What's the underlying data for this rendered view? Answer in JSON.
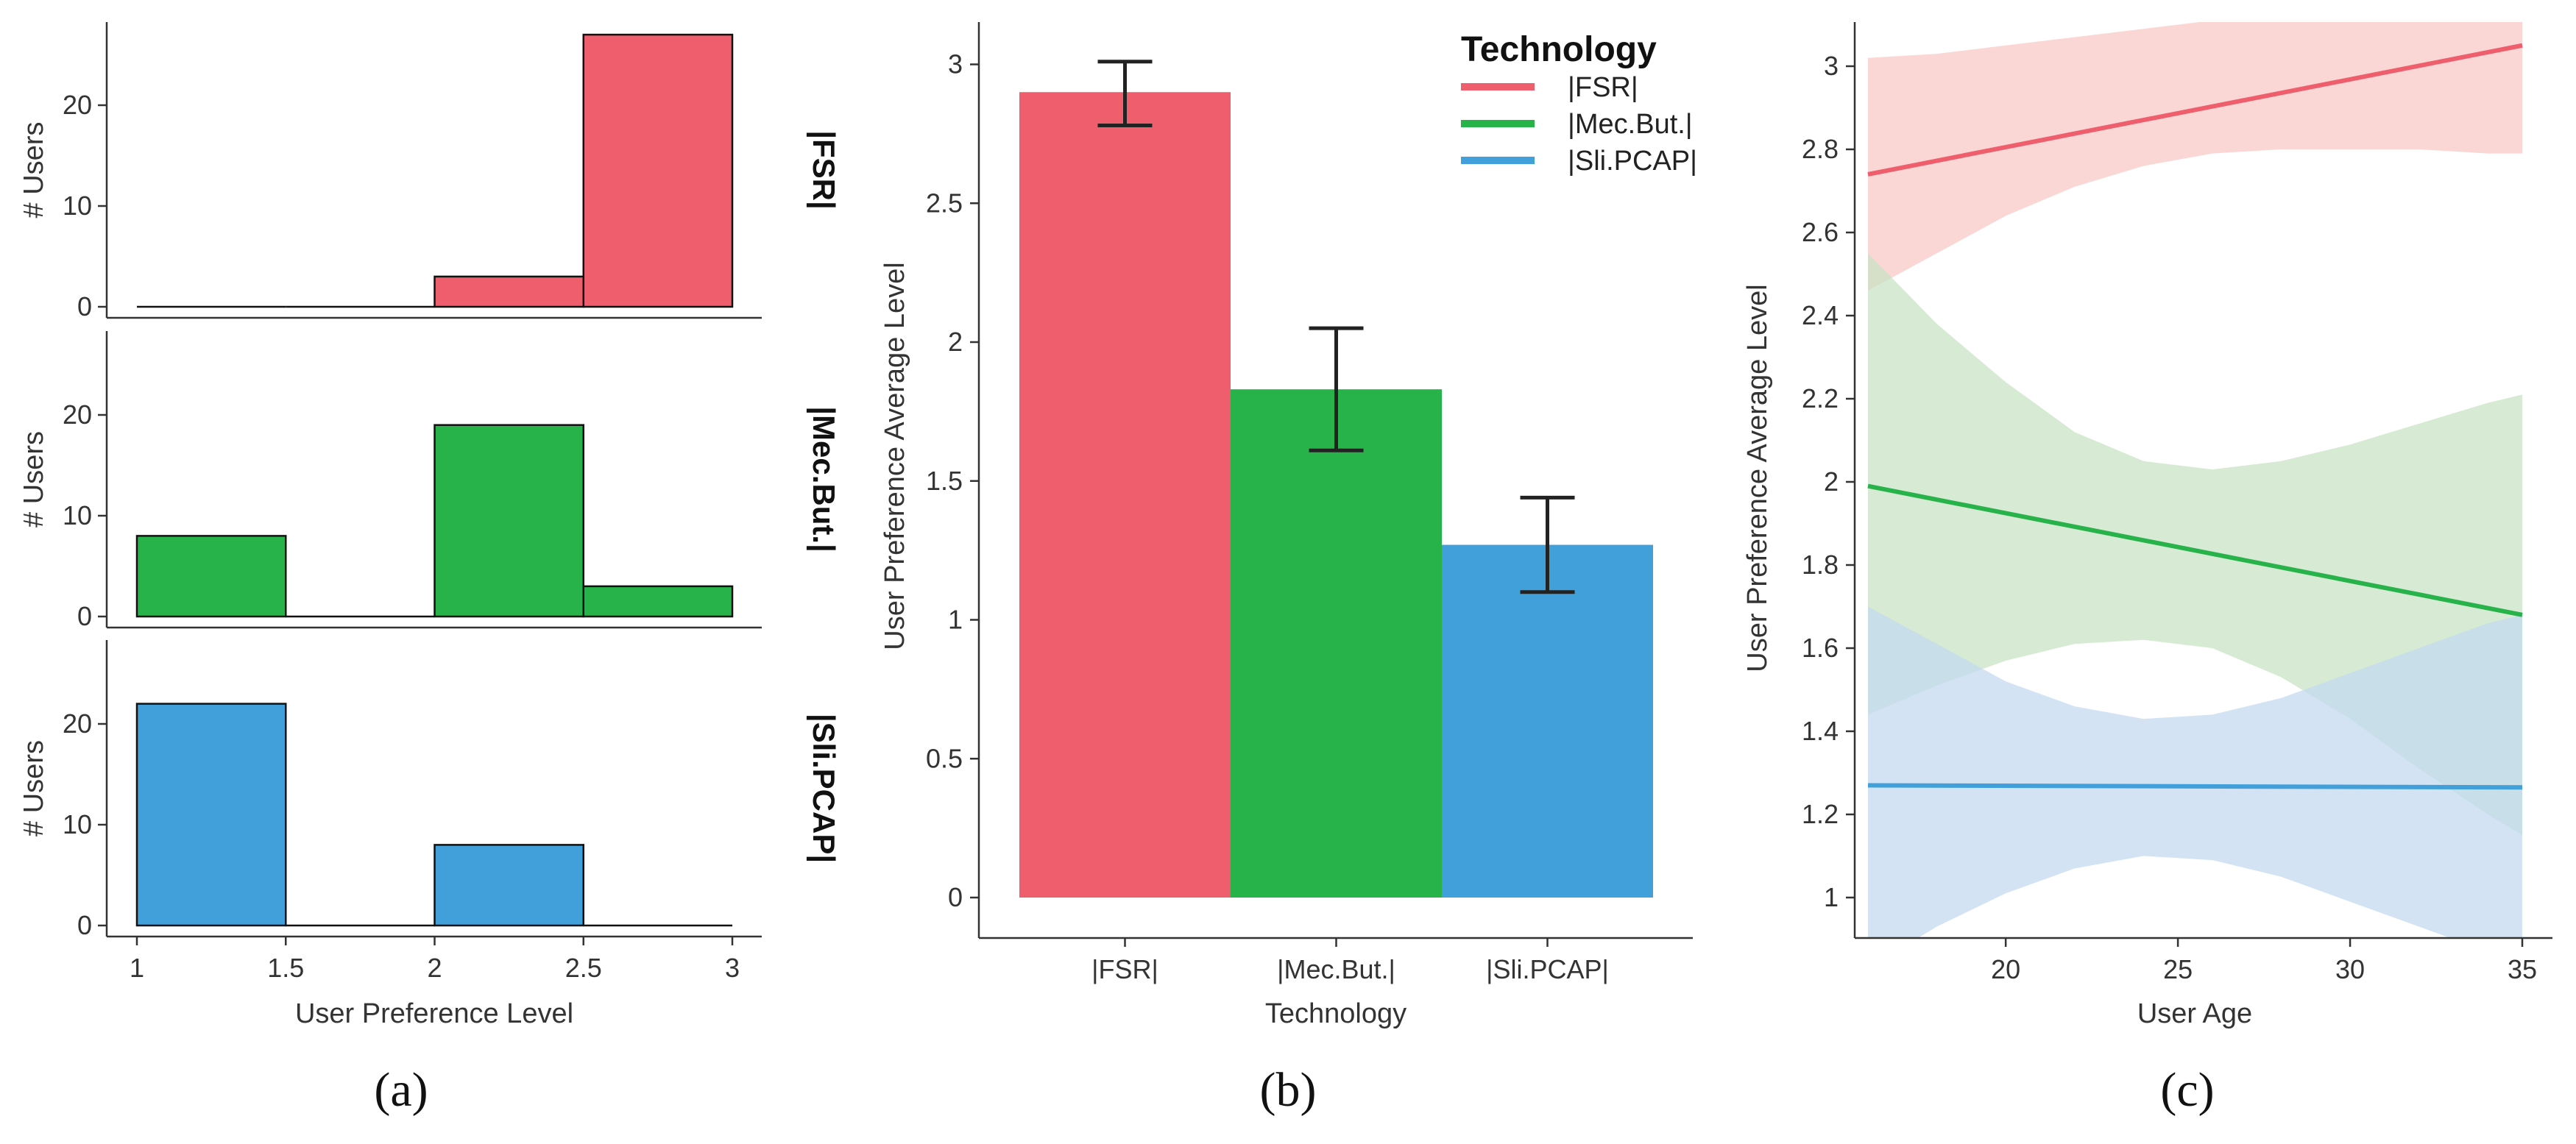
{
  "colors": {
    "FSR": "#EE5E6C",
    "MecBut": "#27B24A",
    "SliPCAP": "#419FDA",
    "FSR_band": "#F8C8C4",
    "MecBut_band": "#C7E3C3",
    "SliPCAP_band": "#C2D8F0",
    "axis": "#333333",
    "errorbar": "#222222"
  },
  "panel_labels": [
    "(a)",
    "(b)",
    "(c)"
  ],
  "chart_data": [
    {
      "type": "bar",
      "subtype": "faceted-histogram",
      "xlabel": "User Preference Level",
      "ylabel": "# Users",
      "xlim": [
        1,
        3
      ],
      "ylim": [
        0,
        28
      ],
      "xticks": [
        "1",
        "1.5",
        "2",
        "2.5",
        "3"
      ],
      "yticks": [
        "0",
        "10",
        "20"
      ],
      "bin_edges": [
        1,
        1.5,
        2,
        2.5,
        3
      ],
      "facets": [
        {
          "name": "|FSR|",
          "color_key": "FSR",
          "counts": [
            0,
            0,
            3,
            27
          ]
        },
        {
          "name": "|Mec.But.|",
          "color_key": "MecBut",
          "counts": [
            8,
            0,
            19,
            3
          ]
        },
        {
          "name": "|Sli.PCAP|",
          "color_key": "SliPCAP",
          "counts": [
            22,
            0,
            8,
            0
          ]
        }
      ]
    },
    {
      "type": "bar",
      "categories": [
        "|FSR|",
        "|Mec.But.|",
        "|Sli.PCAP|"
      ],
      "values": [
        2.9,
        1.83,
        1.27
      ],
      "error_low": [
        2.78,
        1.61,
        1.1
      ],
      "error_high": [
        3.01,
        2.05,
        1.44
      ],
      "color_keys": [
        "FSR",
        "MecBut",
        "SliPCAP"
      ],
      "xlabel": "Technology",
      "ylabel": "User Preference Average Level",
      "ylim": [
        -0.15,
        3.15
      ],
      "yticks": [
        "0",
        "0.5",
        "1",
        "1.5",
        "2",
        "2.5",
        "3"
      ],
      "legend": {
        "title": "Technology",
        "placement": "top-right",
        "entries": [
          "|FSR|",
          "|Mec.But.|",
          "|Sli.PCAP|"
        ]
      }
    },
    {
      "type": "line",
      "subtype": "regression-with-confidence-band",
      "xlabel": "User Age",
      "ylabel": "User Preference Average Level",
      "xlim": [
        15.2,
        35.8
      ],
      "ylim": [
        0.85,
        3.1
      ],
      "xticks": [
        "20",
        "25",
        "30",
        "35"
      ],
      "yticks": [
        "1",
        "1.2",
        "1.4",
        "1.6",
        "1.8",
        "2",
        "2.2",
        "2.4",
        "2.6",
        "2.8",
        "3"
      ],
      "band_x": [
        16,
        18,
        20,
        22,
        24,
        26,
        28,
        30,
        32,
        34,
        35
      ],
      "series": [
        {
          "name": "|FSR|",
          "color_key": "FSR",
          "band_key": "FSR_band",
          "line_x": [
            16,
            35
          ],
          "line_y": [
            2.74,
            3.05
          ],
          "band_upper": [
            3.02,
            3.03,
            3.05,
            3.07,
            3.09,
            3.11,
            3.13,
            3.14,
            3.16,
            3.18,
            3.19
          ],
          "band_lower": [
            2.46,
            2.55,
            2.64,
            2.71,
            2.76,
            2.79,
            2.8,
            2.8,
            2.8,
            2.79,
            2.79
          ]
        },
        {
          "name": "|Mec.But.|",
          "color_key": "MecBut",
          "band_key": "MecBut_band",
          "line_x": [
            16,
            35
          ],
          "line_y": [
            1.99,
            1.68
          ],
          "band_upper": [
            2.55,
            2.38,
            2.24,
            2.12,
            2.05,
            2.03,
            2.05,
            2.09,
            2.14,
            2.19,
            2.21
          ],
          "band_lower": [
            1.44,
            1.51,
            1.57,
            1.61,
            1.62,
            1.6,
            1.53,
            1.43,
            1.31,
            1.2,
            1.15
          ]
        },
        {
          "name": "|Sli.PCAP|",
          "color_key": "SliPCAP",
          "band_key": "SliPCAP_band",
          "line_x": [
            16,
            35
          ],
          "line_y": [
            1.27,
            1.265
          ],
          "band_upper": [
            1.7,
            1.61,
            1.52,
            1.46,
            1.43,
            1.44,
            1.48,
            1.54,
            1.6,
            1.66,
            1.68
          ],
          "band_lower": [
            0.83,
            0.93,
            1.01,
            1.07,
            1.1,
            1.09,
            1.05,
            0.99,
            0.93,
            0.87,
            0.84
          ]
        }
      ]
    }
  ]
}
